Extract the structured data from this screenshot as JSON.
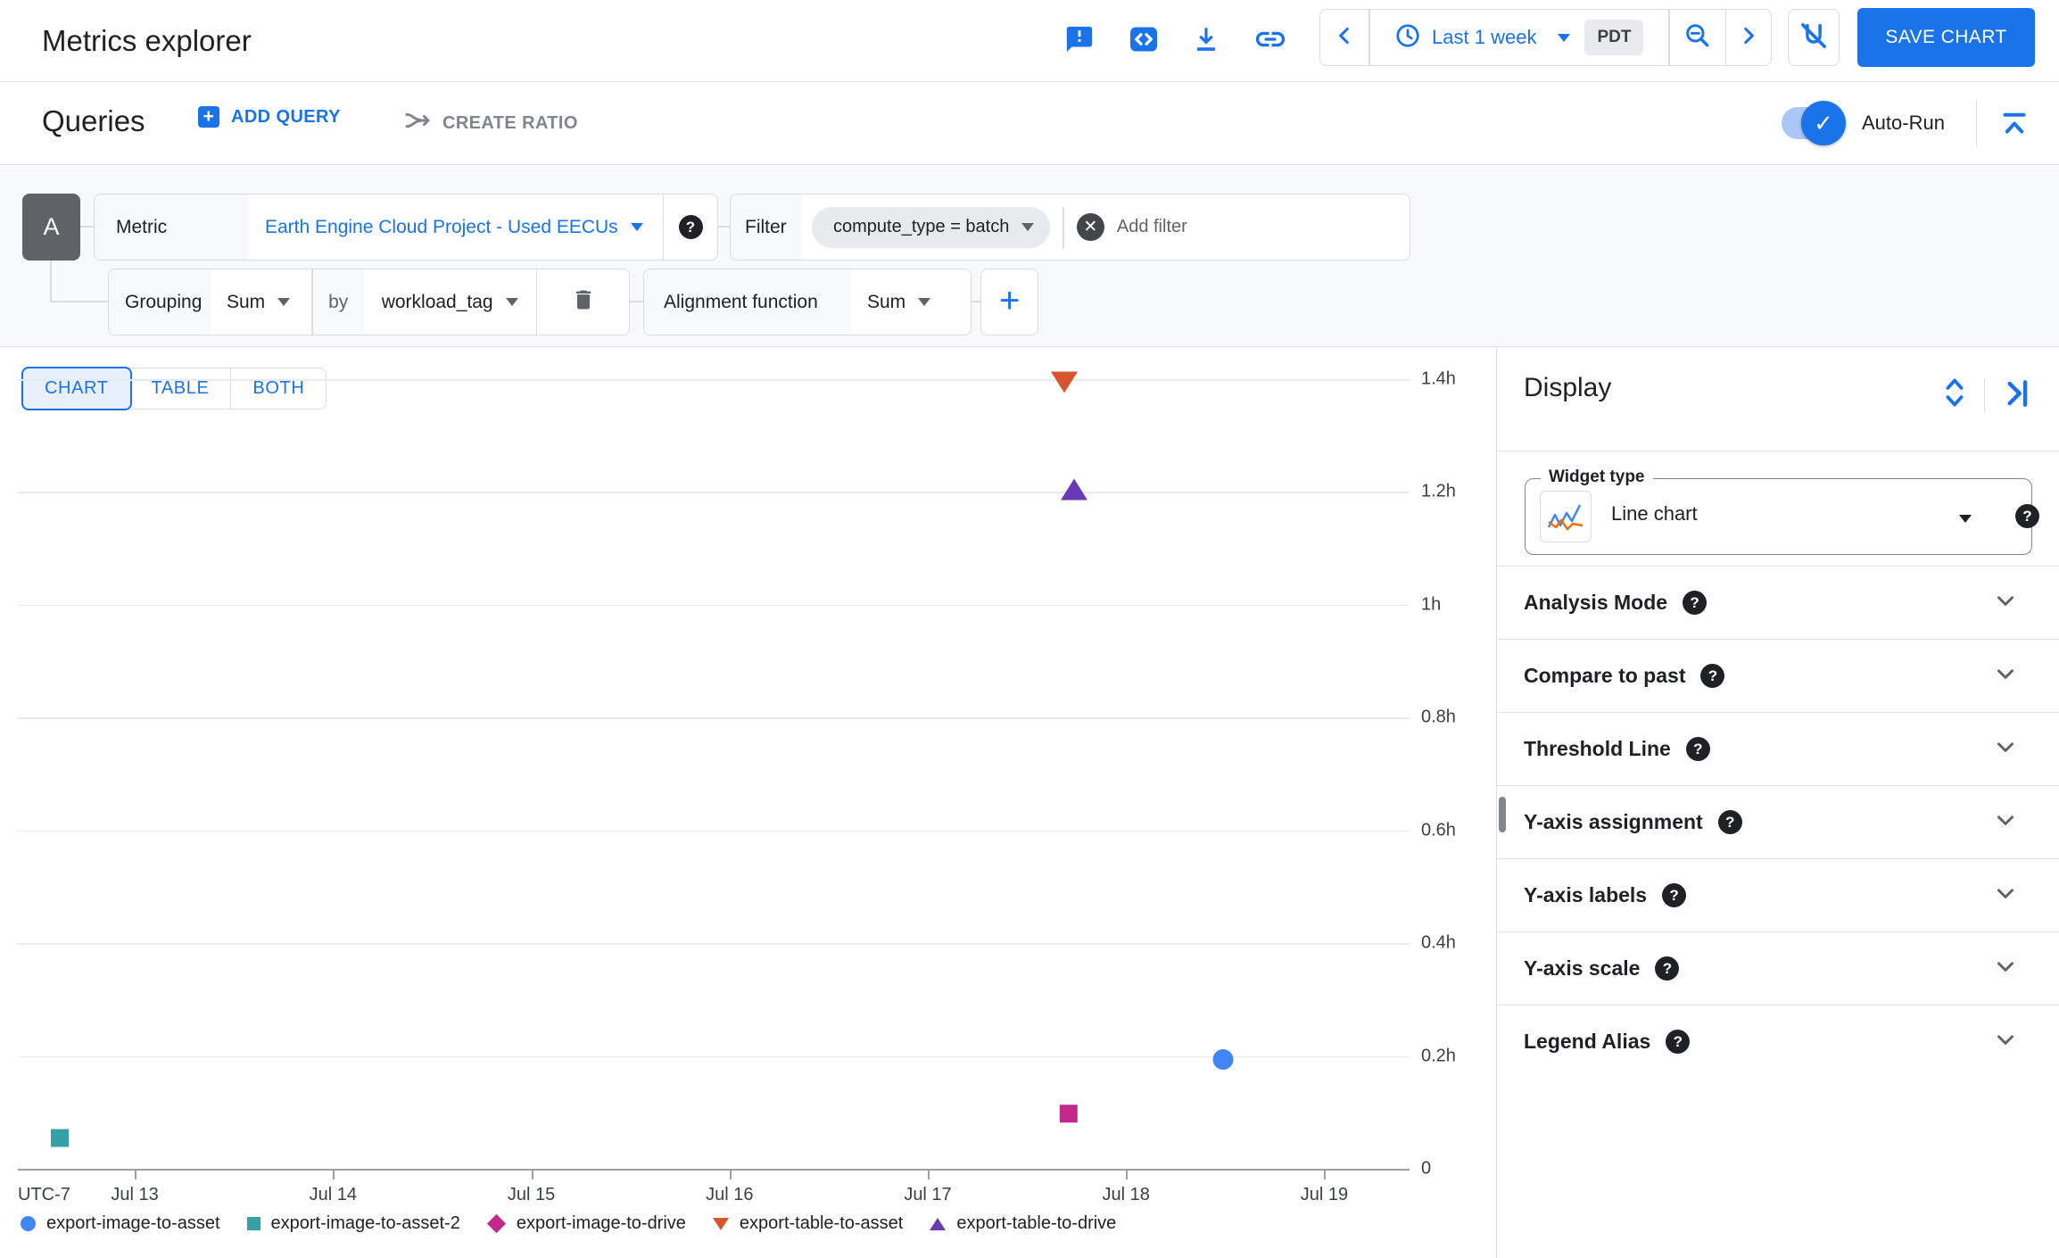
{
  "header": {
    "title": "Metrics explorer",
    "toolbar_icons": [
      "feedback",
      "code",
      "download",
      "link"
    ],
    "time_range": {
      "label": "Last 1 week",
      "timezone_badge": "PDT"
    },
    "save_button_label": "SAVE CHART"
  },
  "queries_bar": {
    "title": "Queries",
    "add_query_label": "ADD QUERY",
    "create_ratio_label": "CREATE RATIO",
    "auto_run_label": "Auto-Run",
    "auto_run_enabled": true,
    "auto_run_check": "✓"
  },
  "query": {
    "letter": "A",
    "metric_label": "Metric",
    "metric_value": "Earth Engine Cloud Project - Used EECUs",
    "filter_label": "Filter",
    "filter_chip": "compute_type = batch",
    "add_filter_placeholder": "Add filter",
    "grouping_label": "Grouping",
    "grouping_value": "Sum",
    "by_label": "by",
    "by_value": "workload_tag",
    "alignment_label": "Alignment function",
    "alignment_value": "Sum",
    "promql_label": "PROMQL",
    "promql_glyph": "<>"
  },
  "view_tabs": [
    {
      "label": "CHART",
      "selected": true
    },
    {
      "label": "TABLE",
      "selected": false
    },
    {
      "label": "BOTH",
      "selected": false
    }
  ],
  "display_panel": {
    "title": "Display",
    "widget_type_label": "Widget type",
    "widget_type_value": "Line chart",
    "sections": [
      "Analysis Mode",
      "Compare to past",
      "Threshold Line",
      "Y-axis assignment",
      "Y-axis labels",
      "Y-axis scale",
      "Legend Alias"
    ]
  },
  "colors": {
    "accent_blue": "#1a73e8",
    "badge_gray": "#5f6368",
    "chip_gray": "#e8eaed",
    "axis_gray": "#9aa0a6",
    "gridline_gray": "#e9eaed"
  },
  "chart_data": {
    "type": "scatter",
    "title": "",
    "x_axis": {
      "corner_label": "UTC-7",
      "unit": "day of July",
      "range": [
        12.41,
        19.43
      ],
      "tick_values": [
        13,
        14,
        15,
        16,
        17,
        18,
        19
      ],
      "tick_labels": [
        "Jul 13",
        "Jul 14",
        "Jul 15",
        "Jul 16",
        "Jul 17",
        "Jul 18",
        "Jul 19"
      ]
    },
    "y_axis": {
      "unit": "hours of EECU usage",
      "range": [
        0,
        1.4
      ],
      "tick_values": [
        1.4,
        1.2,
        1.0,
        0.8,
        0.6,
        0.4,
        0.2,
        0
      ],
      "tick_labels": [
        "1.4h",
        "1.2h",
        "1h",
        "0.8h",
        "0.6h",
        "0.4h",
        "0.2h",
        "0"
      ]
    },
    "grid": true,
    "legend_position": "bottom",
    "series": [
      {
        "name": "export-image-to-asset",
        "color": "#4285f4",
        "shape": "circle",
        "points": [
          {
            "x": 18.49,
            "y": 0.19
          }
        ]
      },
      {
        "name": "export-image-to-asset-2",
        "color": "#35a0a5",
        "shape": "square",
        "points": [
          {
            "x": 12.62,
            "y": 0.05
          }
        ]
      },
      {
        "name": "export-image-to-drive",
        "color": "#c2298a",
        "shape": "diamond",
        "points": [
          {
            "x": 17.7,
            "y": 0.095
          }
        ]
      },
      {
        "name": "export-table-to-asset",
        "color": "#d8562e",
        "shape": "triangle-down",
        "points": [
          {
            "x": 17.69,
            "y": 1.39
          }
        ]
      },
      {
        "name": "export-table-to-drive",
        "color": "#6a39b5",
        "shape": "triangle-up",
        "points": [
          {
            "x": 17.74,
            "y": 1.2
          }
        ]
      }
    ]
  }
}
